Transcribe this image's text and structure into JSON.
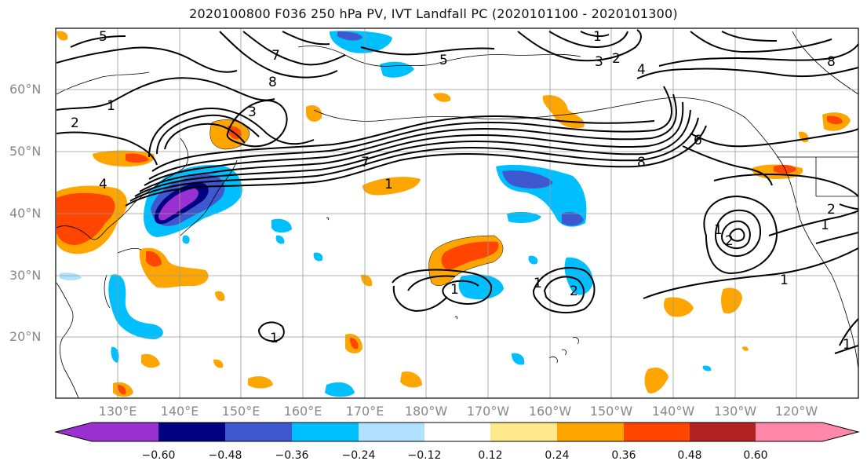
{
  "title": "2020100800 F036 250 hPa PV, IVT Landfall PC (2020101100 - 2020101300)",
  "map": {
    "lat_labels": [
      "60°N",
      "50°N",
      "40°N",
      "30°N",
      "20°N"
    ],
    "lon_labels": [
      "130°E",
      "140°E",
      "150°E",
      "160°E",
      "170°E",
      "180°W",
      "170°W",
      "160°W",
      "150°W",
      "140°W",
      "130°W",
      "120°W"
    ],
    "contour_labels": [
      "5",
      "7",
      "8",
      "1",
      "2",
      "3",
      "4",
      "5",
      "6",
      "7",
      "8",
      "1",
      "2",
      "1",
      "1",
      "1",
      "2",
      "1",
      "1",
      "2",
      "1",
      "2",
      "1",
      "4",
      "3",
      "1",
      "8"
    ]
  },
  "colorbar": {
    "colors": [
      "#9b30d0",
      "#000080",
      "#3f57cf",
      "#00bfff",
      "#b0e2ff",
      "#ffffff",
      "#ffe98a",
      "#ffa500",
      "#ff4500",
      "#b22222",
      "#ff88aa"
    ],
    "tick_labels": [
      "−0.60",
      "−0.48",
      "−0.36",
      "−0.24",
      "−0.12",
      "0.12",
      "0.24",
      "0.36",
      "0.48",
      "0.60"
    ]
  },
  "chart_data": {
    "type": "heatmap",
    "title": "2020100800 F036 250 hPa PV, IVT Landfall PC (2020101100 - 2020101300)",
    "projection": "lat-lon",
    "lon_range_deg_east": [
      120,
      250
    ],
    "lat_range": [
      10,
      70
    ],
    "colorbar_levels": [
      -0.6,
      -0.48,
      -0.36,
      -0.24,
      -0.12,
      0.12,
      0.24,
      0.36,
      0.48,
      0.6
    ],
    "shaded_field": "IVT Landfall PC",
    "contour_field": "250 hPa PV",
    "grid": true
  }
}
